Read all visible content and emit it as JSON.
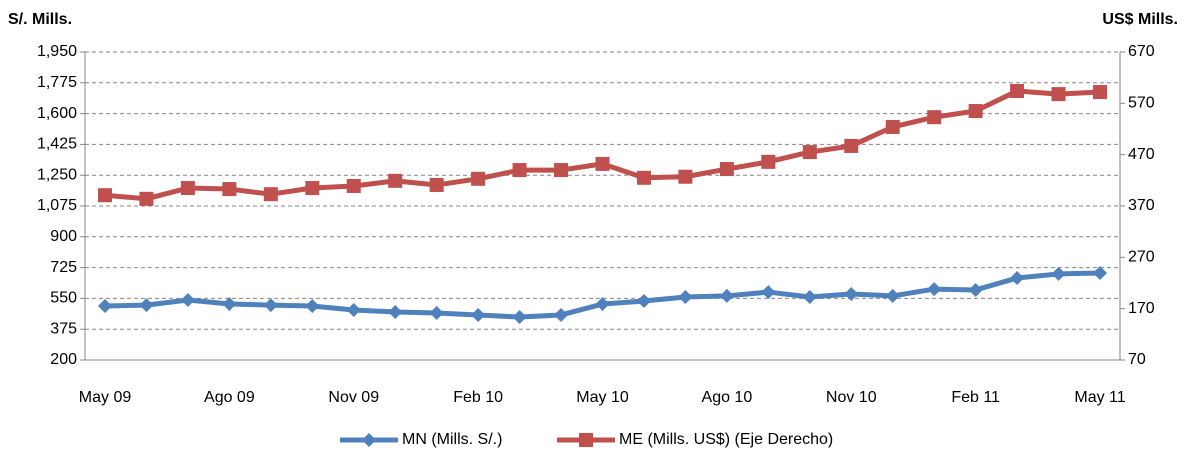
{
  "chart_data": {
    "type": "line",
    "ylabel": "S/. Mills.",
    "y2label": "US$ Mills.",
    "categories": [
      "May 09",
      null,
      null,
      "Ago 09",
      null,
      null,
      "Nov 09",
      null,
      null,
      "Feb 10",
      null,
      null,
      "May 10",
      null,
      null,
      "Ago 10",
      null,
      null,
      "Nov 10",
      null,
      null,
      "Feb 11",
      null,
      null,
      "May 11"
    ],
    "series": [
      {
        "name": "MN (Mills. S/.)",
        "color": "#4f81bd",
        "marker": "diamond",
        "values": [
          507,
          512,
          541,
          518,
          512,
          507,
          484,
          473,
          467,
          456,
          444,
          456,
          518,
          535,
          558,
          564,
          586,
          558,
          575,
          564,
          603,
          598,
          666,
          689,
          694
        ]
      },
      {
        "name": "ME (Mills. US$) (Eje Derecho)",
        "color": "#c0504d",
        "marker": "square",
        "axis": "y2",
        "values": [
          391,
          384,
          405,
          403,
          393,
          405,
          409,
          419,
          411,
          423,
          440,
          440,
          452,
          425,
          427,
          442,
          456,
          475,
          487,
          524,
          543,
          555,
          594,
          588,
          592
        ]
      }
    ],
    "ylim": [
      200,
      1950
    ],
    "yticks": [
      200,
      375,
      550,
      725,
      900,
      {
        "value": 1075,
        "label": "1,075"
      },
      {
        "value": 1250,
        "label": "1,250"
      },
      {
        "value": 1425,
        "label": "1,425"
      },
      {
        "value": 1600,
        "label": "1,600"
      },
      {
        "value": 1775,
        "label": "1,775"
      },
      {
        "value": 1950,
        "label": "1,950"
      }
    ],
    "y2lim": [
      70,
      670
    ],
    "y2ticks": [
      70,
      170,
      270,
      370,
      470,
      570,
      670
    ],
    "grid": true,
    "legend": "bottom"
  }
}
